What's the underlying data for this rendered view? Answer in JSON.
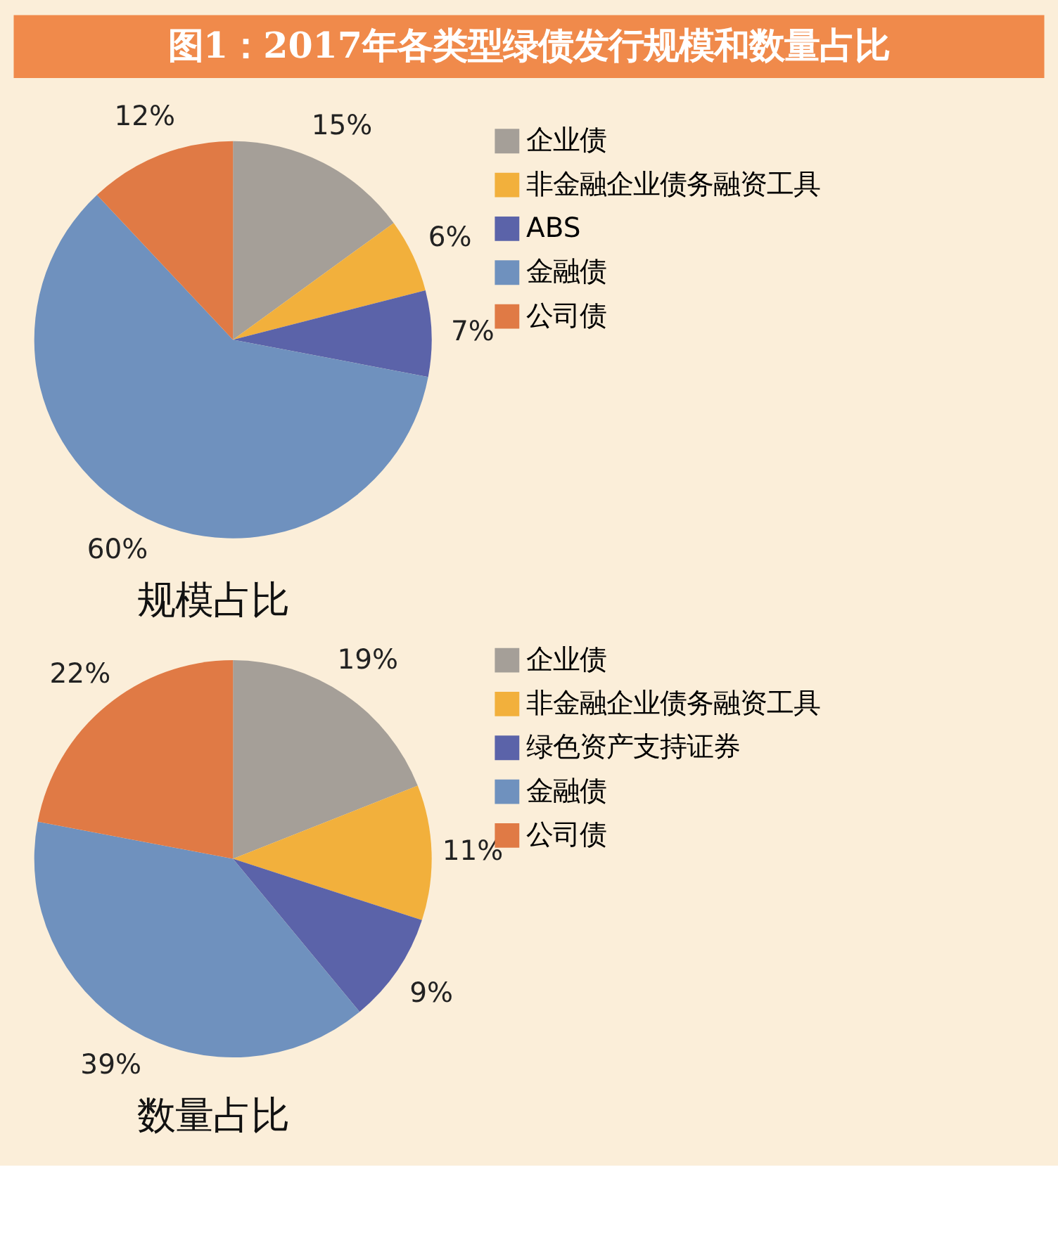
{
  "chart_data": [
    {
      "type": "pie",
      "title": "图1：2017年各类型绿债发行规模和数量占比",
      "subtitle": "规模占比",
      "categories": [
        "企业债",
        "非金融企业债务融资工具",
        "ABS",
        "金融债",
        "公司债"
      ],
      "values": [
        15,
        6,
        7,
        60,
        12
      ],
      "value_labels": [
        "15%",
        "6%",
        "7%",
        "60%",
        "12%"
      ],
      "colors": [
        "#a59f98",
        "#f2b03c",
        "#5b63a9",
        "#6f91be",
        "#e07a45"
      ],
      "legend": "right"
    },
    {
      "type": "pie",
      "title": "数量占比",
      "categories": [
        "企业债",
        "非金融企业债务融资工具",
        "绿色资产支持证券",
        "金融债",
        "公司债"
      ],
      "values": [
        19,
        11,
        9,
        39,
        22
      ],
      "value_labels": [
        "19%",
        "11%",
        "9%",
        "39%",
        "22%"
      ],
      "colors": [
        "#a59f98",
        "#f2b03c",
        "#5b63a9",
        "#6f91be",
        "#e07a45"
      ],
      "legend": "right"
    }
  ]
}
